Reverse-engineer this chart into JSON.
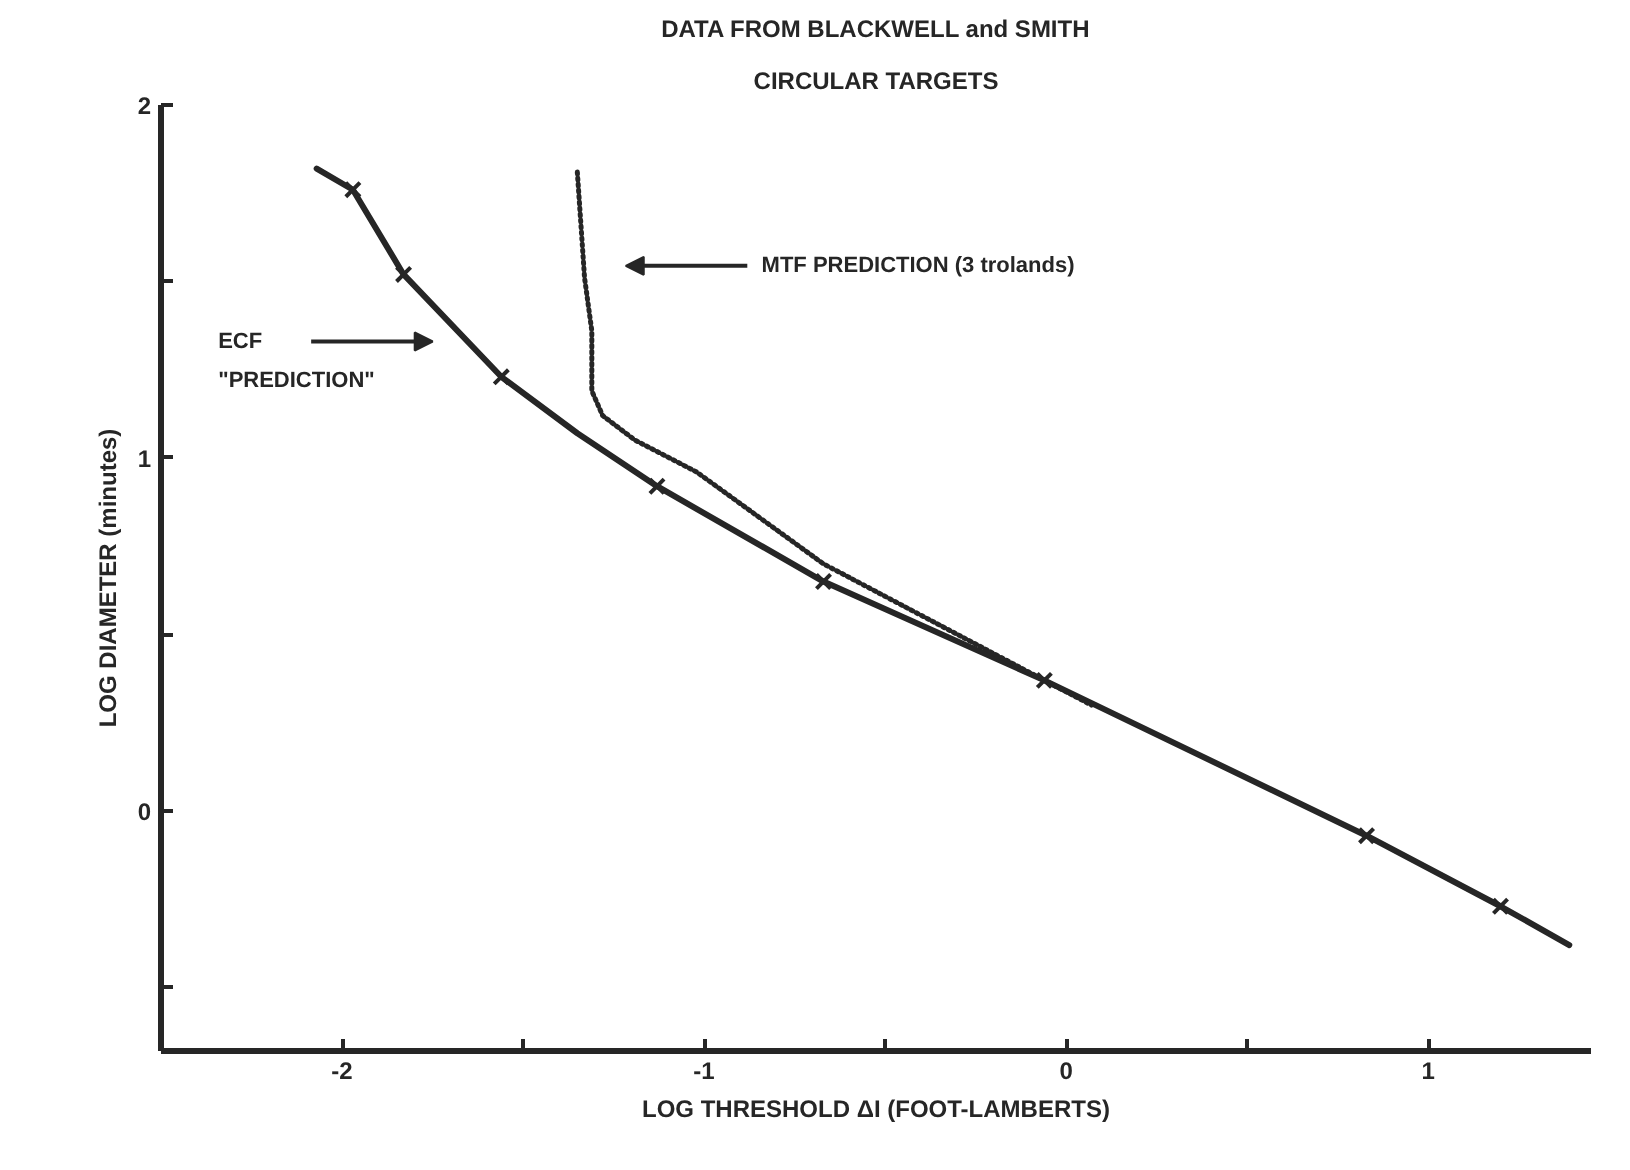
{
  "chart_data": {
    "type": "line",
    "title": "DATA FROM BLACKWELL and SMITH",
    "subtitle": "CIRCULAR TARGETS",
    "xlabel": "LOG THRESHOLD ΔI (FOOT-LAMBERTS)",
    "ylabel": "LOG DIAMETER (minutes)",
    "xlim": [
      -2.5,
      1.45
    ],
    "ylim": [
      -0.68,
      2.0
    ],
    "xticks": [
      {
        "value": -2,
        "label": "-2"
      },
      {
        "value": -1.5,
        "label": null
      },
      {
        "value": -1,
        "label": "-1"
      },
      {
        "value": -0.5,
        "label": null
      },
      0,
      {
        "value": 0.5,
        "label": null
      },
      1
    ],
    "yticks": [
      {
        "value": -0.5,
        "label": null
      },
      0,
      {
        "value": 0.5,
        "label": null
      },
      1,
      {
        "value": 1.5,
        "label": null
      },
      2
    ],
    "grid": false,
    "series": [
      {
        "color": "#262626",
        "line_style": "solid",
        "marker": "none",
        "x": [
          -2.07,
          -1.97,
          -1.83,
          -1.56,
          -1.35,
          -1.13,
          -0.67,
          -0.06,
          0.83,
          1.2,
          1.39
        ],
        "values": [
          1.82,
          1.76,
          1.52,
          1.23,
          1.07,
          0.92,
          0.65,
          0.37,
          -0.07,
          -0.27,
          -0.38
        ]
      },
      {
        "color": "#262626",
        "line_style": "dotted",
        "marker": "none",
        "x": [
          -1.35,
          -1.33,
          -1.31,
          -1.31,
          -1.28,
          -1.19,
          -1.02,
          -0.67,
          -0.3,
          0.07
        ],
        "values": [
          1.81,
          1.51,
          1.36,
          1.19,
          1.12,
          1.05,
          0.96,
          0.7,
          0.5,
          0.3
        ]
      },
      {
        "type": "scatter",
        "color": "#262626",
        "marker": "cross",
        "x": [
          -1.97,
          -1.83,
          -1.56,
          -1.13,
          -0.67,
          -0.06,
          0.83,
          1.2
        ],
        "values": [
          1.76,
          1.52,
          1.23,
          0.92,
          0.65,
          0.37,
          -0.07,
          -0.27
        ]
      }
    ],
    "annotations": [
      "ECF\n\"PREDICTION\"",
      "MTF PREDICTION (3 trolands)"
    ]
  }
}
